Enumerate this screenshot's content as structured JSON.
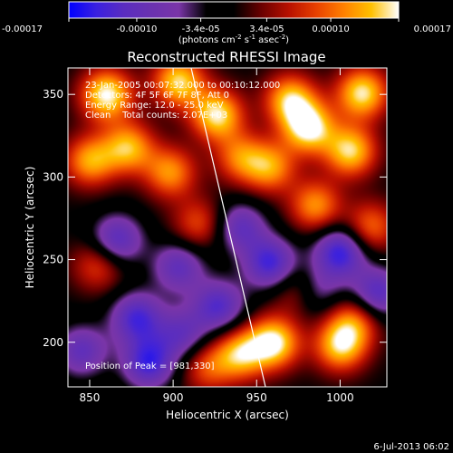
{
  "colorbar": {
    "ticks": [
      "-0.00017",
      "-0.00010",
      "-3.4e-05",
      "3.4e-05",
      "0.00010",
      "0.00017"
    ],
    "tick_values": [
      -0.00017,
      -0.0001,
      -3.4e-05,
      3.4e-05,
      0.0001,
      0.00017
    ],
    "range": [
      -0.00017,
      0.00017
    ],
    "unit_parts": [
      "(photons cm",
      "-2",
      " s",
      "-1",
      " asec",
      "-2",
      ")"
    ]
  },
  "annotations": {
    "time_range": "23-Jan-2005 00:07:32.000 to 00:10:12.000",
    "detectors": "Detectors: 4F 5F 6F 7F 8F, Att 0",
    "energy": "Energy Range: 12.0 - 25.0 keV",
    "clean": "Clean    Total counts: 2.07E+03",
    "peak": "Position of Peak = [981,330]"
  },
  "footer": {
    "date": "6-Jul-2013 06:02"
  },
  "colors": {
    "ramp": [
      "#0000ff",
      "#3a20e0",
      "#5a2dc0",
      "#6a32b0",
      "#7a35a8",
      "#000000",
      "#000000",
      "#6a0000",
      "#b81000",
      "#e84000",
      "#ff8000",
      "#ffc000",
      "#ffffff"
    ]
  },
  "chart_data": {
    "type": "heatmap",
    "title": "Reconstructed RHESSI Image",
    "xlabel": "Heliocentric X (arcsec)",
    "ylabel": "Heliocentric Y (arcsec)",
    "xlim": [
      837,
      1028
    ],
    "ylim": [
      173,
      366
    ],
    "xticks": [
      850,
      900,
      950,
      1000
    ],
    "yticks": [
      200,
      250,
      300,
      350
    ],
    "peak": [
      981,
      330
    ],
    "hotspots": [
      {
        "x": 860,
        "y": 350,
        "v": 1.0
      },
      {
        "x": 873,
        "y": 318,
        "v": 0.8
      },
      {
        "x": 903,
        "y": 358,
        "v": 0.9
      },
      {
        "x": 926,
        "y": 338,
        "v": 0.95
      },
      {
        "x": 970,
        "y": 347,
        "v": 0.85
      },
      {
        "x": 981,
        "y": 330,
        "v": 1.0
      },
      {
        "x": 1006,
        "y": 316,
        "v": 0.9
      },
      {
        "x": 1013,
        "y": 351,
        "v": 0.95
      },
      {
        "x": 850,
        "y": 310,
        "v": 0.75
      },
      {
        "x": 898,
        "y": 303,
        "v": 0.7
      },
      {
        "x": 958,
        "y": 306,
        "v": 0.7
      },
      {
        "x": 940,
        "y": 312,
        "v": 0.6
      },
      {
        "x": 985,
        "y": 283,
        "v": 0.7
      },
      {
        "x": 1018,
        "y": 270,
        "v": 0.6
      },
      {
        "x": 960,
        "y": 200,
        "v": 1.0
      },
      {
        "x": 940,
        "y": 193,
        "v": 0.8
      },
      {
        "x": 1000,
        "y": 198,
        "v": 0.85
      },
      {
        "x": 1008,
        "y": 213,
        "v": 0.6
      },
      {
        "x": 920,
        "y": 185,
        "v": 0.5
      },
      {
        "x": 855,
        "y": 247,
        "v": 0.5
      },
      {
        "x": 915,
        "y": 272,
        "v": 0.5
      },
      {
        "x": 975,
        "y": 232,
        "v": 0.45
      },
      {
        "x": 878,
        "y": 215,
        "v": -0.75
      },
      {
        "x": 885,
        "y": 188,
        "v": -0.8
      },
      {
        "x": 927,
        "y": 222,
        "v": -0.7
      },
      {
        "x": 958,
        "y": 248,
        "v": -0.8
      },
      {
        "x": 1000,
        "y": 255,
        "v": -0.85
      },
      {
        "x": 1022,
        "y": 230,
        "v": -0.7
      },
      {
        "x": 866,
        "y": 262,
        "v": -0.7
      },
      {
        "x": 940,
        "y": 270,
        "v": -0.6
      },
      {
        "x": 903,
        "y": 246,
        "v": -0.6
      },
      {
        "x": 845,
        "y": 195,
        "v": -0.6
      },
      {
        "x": 985,
        "y": 232,
        "v": -0.5
      },
      {
        "x": 905,
        "y": 205,
        "v": -0.55
      }
    ]
  }
}
